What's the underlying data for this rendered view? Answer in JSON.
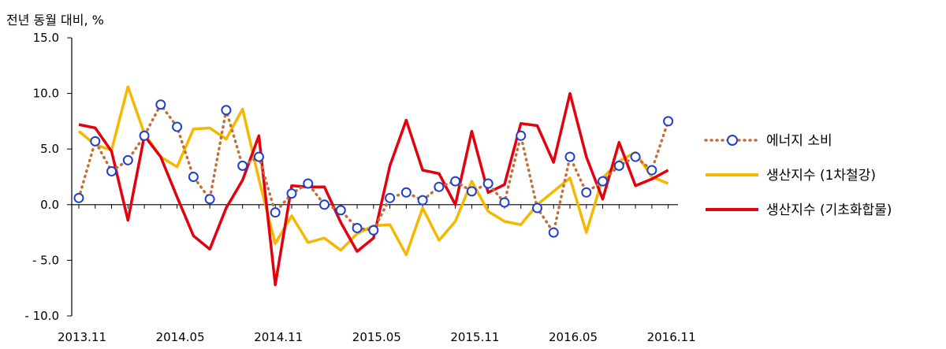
{
  "chart_data": {
    "type": "line",
    "ylabel": "전년 동월 대비, %",
    "ylim": [
      -10,
      15
    ],
    "y_ticks": [
      "15.0",
      "10.0",
      "5.0",
      "0.0",
      "- 5.0",
      "- 10.0"
    ],
    "y_tick_values": [
      15,
      10,
      5,
      0,
      -5,
      -10
    ],
    "x_tick_labels": [
      "2013.11",
      "2014.05",
      "2014.11",
      "2015.05",
      "2015.11",
      "2016.05",
      "2016.11"
    ],
    "x_tick_indices": [
      0,
      6,
      12,
      18,
      24,
      30,
      36
    ],
    "x": [
      "2013.11",
      "2013.12",
      "2014.01",
      "2014.02",
      "2014.03",
      "2014.04",
      "2014.05",
      "2014.06",
      "2014.07",
      "2014.08",
      "2014.09",
      "2014.10",
      "2014.11",
      "2014.12",
      "2015.01",
      "2015.02",
      "2015.03",
      "2015.04",
      "2015.05",
      "2015.06",
      "2015.07",
      "2015.08",
      "2015.09",
      "2015.10",
      "2015.11",
      "2015.12",
      "2016.01",
      "2016.02",
      "2016.03",
      "2016.04",
      "2016.05",
      "2016.06",
      "2016.07",
      "2016.08",
      "2016.09",
      "2016.10",
      "2016.11"
    ],
    "legend_position": "right",
    "grid": false,
    "series": [
      {
        "name": "에너지 소비",
        "style": "dotted-markers",
        "color": "#c0703a",
        "marker_color": "#1f3fd0",
        "values": [
          0.6,
          5.7,
          3.0,
          4.0,
          6.2,
          9.0,
          7.0,
          2.5,
          0.5,
          8.5,
          3.5,
          4.3,
          -0.7,
          1.0,
          1.9,
          0.0,
          -0.5,
          -2.1,
          -2.3,
          0.6,
          1.1,
          0.4,
          1.6,
          2.1,
          1.2,
          1.9,
          0.2,
          6.2,
          -0.3,
          -2.5,
          4.3,
          1.1,
          2.1,
          3.5,
          4.3,
          3.1,
          7.5
        ]
      },
      {
        "name": "생산지수 (1차철강)",
        "style": "line",
        "color": "#f5b800",
        "values": [
          6.6,
          5.4,
          4.9,
          10.6,
          6.4,
          4.3,
          3.4,
          6.8,
          6.9,
          5.9,
          8.6,
          2.3,
          -3.5,
          -1.0,
          -3.4,
          -3.0,
          -4.1,
          -2.6,
          -1.9,
          -1.8,
          -4.5,
          -0.3,
          -3.2,
          -1.5,
          2.1,
          -0.6,
          -1.5,
          -1.8,
          0.0,
          1.2,
          2.4,
          -2.5,
          2.4,
          3.9,
          4.7,
          2.5,
          1.9
        ]
      },
      {
        "name": "생산지수 (기초화합물)",
        "style": "line",
        "color": "#e3000f",
        "values": [
          7.2,
          6.9,
          4.8,
          -1.4,
          6.2,
          4.3,
          0.7,
          -2.8,
          -4.0,
          -0.3,
          2.2,
          6.2,
          -7.2,
          1.7,
          1.6,
          1.6,
          -1.6,
          -4.2,
          -3.0,
          3.5,
          7.6,
          3.1,
          2.8,
          0.0,
          6.6,
          1.1,
          1.8,
          7.3,
          7.1,
          3.8,
          10.0,
          4.3,
          0.5,
          5.6,
          1.7,
          2.3,
          3.1
        ]
      }
    ]
  }
}
